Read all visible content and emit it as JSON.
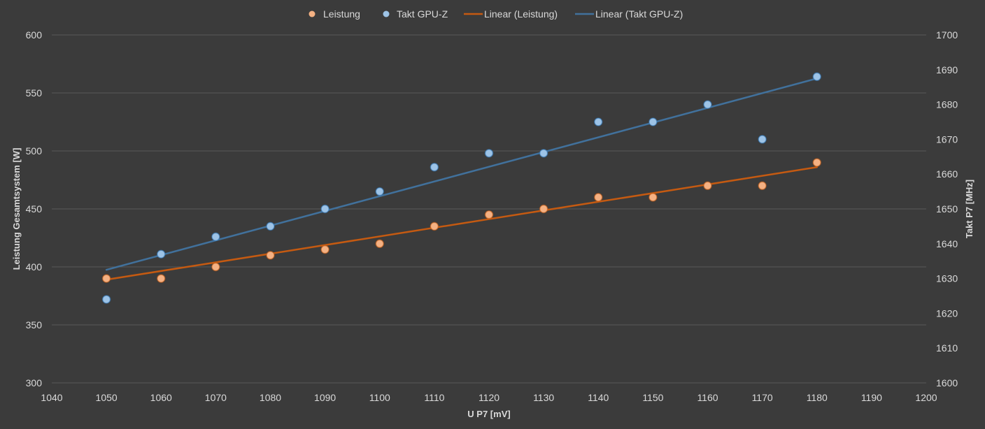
{
  "chart_data": {
    "type": "scatter",
    "title": "",
    "xlabel": "U P7 [mV]",
    "ylabel": "Leistung Gesamtsystem [W]",
    "y2label": "Takt P7 [MHz]",
    "xlim": [
      1040,
      1200
    ],
    "ylim": [
      300,
      600
    ],
    "y2lim": [
      1600,
      1700
    ],
    "x_ticks": [
      1040,
      1050,
      1060,
      1070,
      1080,
      1090,
      1100,
      1110,
      1120,
      1130,
      1140,
      1150,
      1160,
      1170,
      1180,
      1190,
      1200
    ],
    "y_ticks": [
      300,
      350,
      400,
      450,
      500,
      550,
      600
    ],
    "y2_ticks": [
      1600,
      1610,
      1620,
      1630,
      1640,
      1650,
      1660,
      1670,
      1680,
      1690,
      1700
    ],
    "grid": "horizontal",
    "legend_position": "top",
    "colors": {
      "background": "#3b3b3b",
      "grid": "#595959",
      "text": "#d9d9d9",
      "leistung_marker": "#f4b183",
      "takt_marker": "#9dc3e6",
      "leistung_trend": "#c55a11",
      "takt_trend": "#41719c"
    },
    "series": [
      {
        "name": "Leistung",
        "axis": "left",
        "x": [
          1050,
          1060,
          1070,
          1080,
          1090,
          1100,
          1110,
          1120,
          1130,
          1140,
          1150,
          1160,
          1170,
          1180
        ],
        "values": [
          390,
          390,
          400,
          410,
          415,
          420,
          435,
          445,
          450,
          460,
          460,
          470,
          470,
          490
        ]
      },
      {
        "name": "Takt GPU-Z",
        "axis": "right",
        "x": [
          1050,
          1060,
          1070,
          1080,
          1090,
          1100,
          1110,
          1120,
          1130,
          1140,
          1150,
          1160,
          1170,
          1180
        ],
        "values": [
          1624,
          1637,
          1642,
          1645,
          1650,
          1655,
          1662,
          1666,
          1666,
          1675,
          1675,
          1680,
          1670,
          1688
        ]
      }
    ],
    "trendlines": [
      {
        "name": "Linear (Leistung)",
        "axis": "left",
        "x": [
          1050,
          1180
        ],
        "values": [
          389,
          486
        ]
      },
      {
        "name": "Linear (Takt GPU-Z)",
        "axis": "right",
        "x": [
          1050,
          1180
        ],
        "values": [
          1632.5,
          1687.5
        ]
      }
    ]
  }
}
